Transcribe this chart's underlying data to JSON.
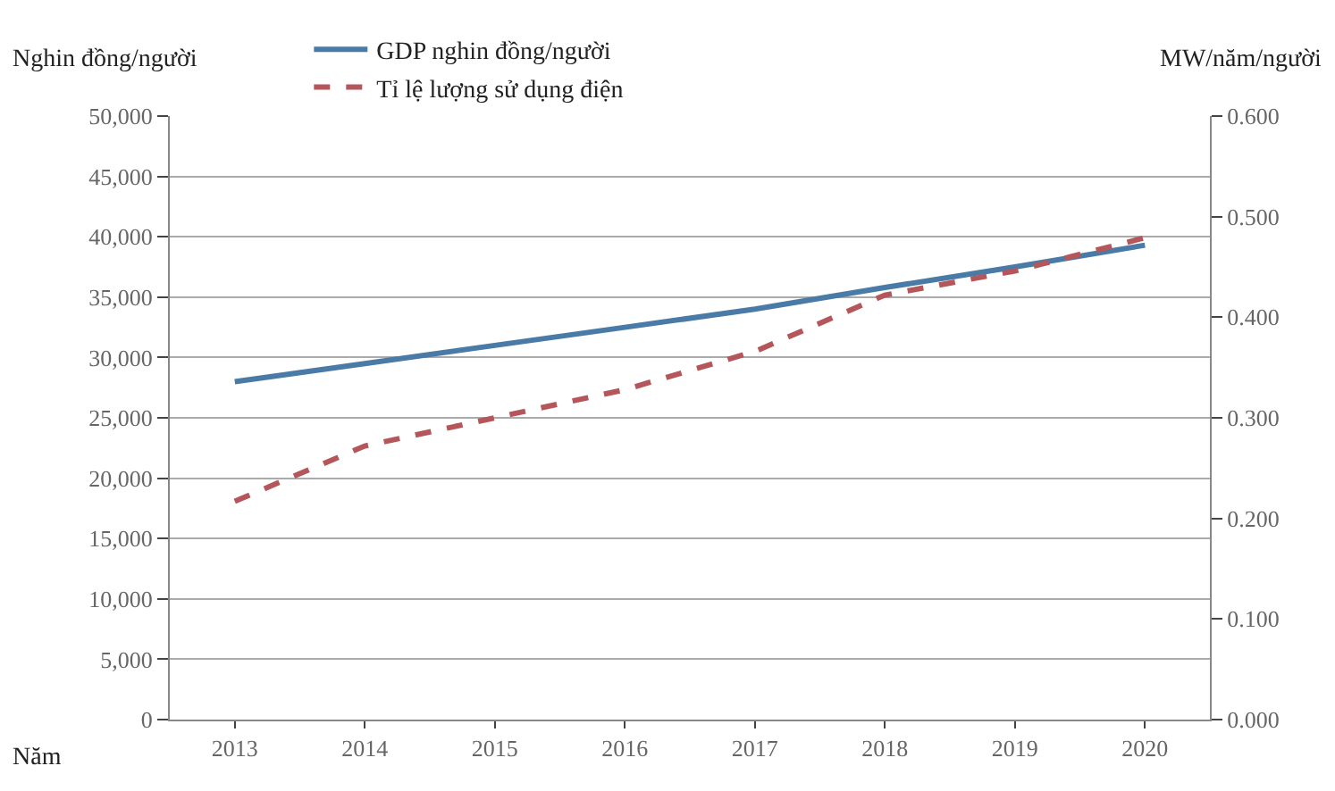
{
  "chart_data": {
    "type": "line",
    "ylabel": "Nghin đồng/người",
    "y2label": "MW/năm/người",
    "xlabel": "Năm",
    "categories": [
      "2013",
      "2014",
      "2015",
      "2016",
      "2017",
      "2018",
      "2019",
      "2020"
    ],
    "series": [
      {
        "name": "GDP nghin đồng/người",
        "color": "#4a7ba7",
        "line_style": "solid",
        "values": [
          28000,
          29500,
          31000,
          32500,
          34000,
          35800,
          37500,
          39300
        ]
      },
      {
        "name": "Tỉ lệ lượng sử dụng điện",
        "color": "#b5575a",
        "line_style": "dashed",
        "axis": "y2",
        "values": [
          0.217,
          0.272,
          0.3,
          0.328,
          0.366,
          0.422,
          0.446,
          0.479
        ]
      }
    ],
    "ylim": [
      0,
      50000
    ],
    "yticks": [
      {
        "value": 0,
        "label": "0"
      },
      {
        "value": 5000,
        "label": "5,000"
      },
      {
        "value": 10000,
        "label": "10,000"
      },
      {
        "value": 15000,
        "label": "15,000"
      },
      {
        "value": 20000,
        "label": "20,000"
      },
      {
        "value": 25000,
        "label": "25,000"
      },
      {
        "value": 30000,
        "label": "30,000"
      },
      {
        "value": 35000,
        "label": "35,000"
      },
      {
        "value": 40000,
        "label": "40,000"
      },
      {
        "value": 45000,
        "label": "45,000"
      },
      {
        "value": 50000,
        "label": "50,000"
      }
    ],
    "y2lim": [
      0,
      0.6
    ],
    "y2ticks": [
      {
        "value": 0,
        "label": "0.000"
      },
      {
        "value": 0.1,
        "label": "0.100"
      },
      {
        "value": 0.2,
        "label": "0.200"
      },
      {
        "value": 0.3,
        "label": "0.300"
      },
      {
        "value": 0.4,
        "label": "0.400"
      },
      {
        "value": 0.5,
        "label": "0.500"
      },
      {
        "value": 0.6,
        "label": "0.600"
      }
    ],
    "grid": "y",
    "legend": "top",
    "marker": "none"
  }
}
